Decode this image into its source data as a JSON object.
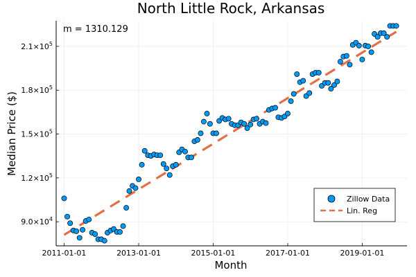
{
  "chart_data": {
    "type": "scatter",
    "title": "North Little Rock, Arkansas",
    "xlabel": "Month",
    "ylabel": "Median Price ($)",
    "annotation": "m = 1310.129",
    "x_ticks": [
      "2011-01-01",
      "2013-01-01",
      "2015-01-01",
      "2017-01-01",
      "2019-01-01"
    ],
    "y_ticks": [
      {
        "value": 90000,
        "mantissa": "9.0×10",
        "exp": "4"
      },
      {
        "value": 120000,
        "mantissa": "1.2×10",
        "exp": "5"
      },
      {
        "value": 150000,
        "mantissa": "1.5×10",
        "exp": "5"
      },
      {
        "value": 180000,
        "mantissa": "1.8×10",
        "exp": "5"
      },
      {
        "value": 210000,
        "mantissa": "2.1×10",
        "exp": "5"
      }
    ],
    "xlim": [
      "2010-10-15",
      "2020-03-15"
    ],
    "ylim": [
      73500,
      227500
    ],
    "grid": true,
    "legend_position": "bottom-right",
    "colors": {
      "scatter": "#009AF9",
      "regression": "#E26F46"
    },
    "series": [
      {
        "name": "Zillow Data",
        "kind": "scatter",
        "x": [
          "2011-01",
          "2011-02",
          "2011-03",
          "2011-04",
          "2011-05",
          "2011-06",
          "2011-07",
          "2011-08",
          "2011-09",
          "2011-10",
          "2011-11",
          "2011-12",
          "2012-01",
          "2012-02",
          "2012-03",
          "2012-04",
          "2012-05",
          "2012-06",
          "2012-07",
          "2012-08",
          "2012-09",
          "2012-10",
          "2012-11",
          "2012-12",
          "2013-01",
          "2013-02",
          "2013-03",
          "2013-04",
          "2013-05",
          "2013-06",
          "2013-07",
          "2013-08",
          "2013-09",
          "2013-10",
          "2013-11",
          "2013-12",
          "2014-01",
          "2014-02",
          "2014-03",
          "2014-04",
          "2014-05",
          "2014-06",
          "2014-07",
          "2014-08",
          "2014-09",
          "2014-10",
          "2014-11",
          "2014-12",
          "2015-01",
          "2015-02",
          "2015-03",
          "2015-04",
          "2015-05",
          "2015-06",
          "2015-07",
          "2015-08",
          "2015-09",
          "2015-10",
          "2015-11",
          "2015-12",
          "2016-01",
          "2016-02",
          "2016-03",
          "2016-04",
          "2016-05",
          "2016-06",
          "2016-07",
          "2016-08",
          "2016-09",
          "2016-10",
          "2016-11",
          "2016-12",
          "2017-01",
          "2017-02",
          "2017-03",
          "2017-04",
          "2017-05",
          "2017-06",
          "2017-07",
          "2017-08",
          "2017-09",
          "2017-10",
          "2017-11",
          "2017-12",
          "2018-01",
          "2018-02",
          "2018-03",
          "2018-04",
          "2018-05",
          "2018-06",
          "2018-07",
          "2018-08",
          "2018-09",
          "2018-10",
          "2018-11",
          "2018-12",
          "2019-01",
          "2019-02",
          "2019-03",
          "2019-04",
          "2019-05",
          "2019-06",
          "2019-07",
          "2019-08",
          "2019-09",
          "2019-10",
          "2019-11",
          "2019-12"
        ],
        "y": [
          106000,
          93500,
          89000,
          84000,
          83500,
          79000,
          84500,
          90500,
          91500,
          82500,
          81500,
          78000,
          78000,
          77000,
          82500,
          84000,
          85000,
          83000,
          83000,
          87000,
          99500,
          111000,
          114500,
          113000,
          119000,
          129000,
          138500,
          135500,
          135000,
          136000,
          135500,
          135500,
          129500,
          126500,
          122000,
          128000,
          129000,
          137500,
          139500,
          138000,
          134000,
          134000,
          145000,
          146000,
          150500,
          158500,
          164000,
          157000,
          150500,
          150500,
          159000,
          161000,
          160000,
          160500,
          157000,
          156000,
          156000,
          158000,
          157000,
          154000,
          156500,
          160000,
          160500,
          157000,
          158500,
          157500,
          166500,
          167500,
          168000,
          161500,
          161000,
          162000,
          164000,
          172500,
          177500,
          191000,
          185500,
          186500,
          176000,
          178000,
          191000,
          192000,
          192000,
          183000,
          185000,
          185000,
          181000,
          183500,
          186000,
          199500,
          203000,
          203500,
          197500,
          211000,
          212500,
          210500,
          201000,
          210500,
          210000,
          206000,
          218500,
          216500,
          219000,
          219000,
          216500,
          224000,
          224000,
          224000
        ]
      },
      {
        "name": "Lin. Reg",
        "kind": "line",
        "x": [
          "2011-01",
          "2019-12"
        ],
        "y": [
          81000,
          220000
        ]
      }
    ]
  }
}
